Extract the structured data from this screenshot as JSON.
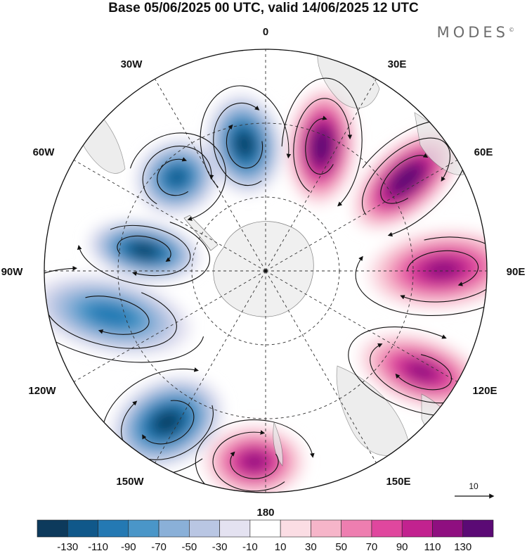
{
  "title": "Base 05/06/2025 00 UTC, valid 14/06/2025 12 UTC",
  "brand": "MODES",
  "brand_mark": "©",
  "longitude_labels": {
    "lon_0": "0",
    "lon_30e": "30E",
    "lon_60e": "60E",
    "lon_90e": "90E",
    "lon_120e": "120E",
    "lon_150e": "150E",
    "lon_180": "180",
    "lon_150w": "150W",
    "lon_120w": "120W",
    "lon_90w": "90W",
    "lon_60w": "60W",
    "lon_30w": "30W"
  },
  "reference_vector": {
    "value": "10"
  },
  "colorbar": {
    "ticks": [
      "-130",
      "-110",
      "-90",
      "-70",
      "-50",
      "-30",
      "-10",
      "10",
      "30",
      "50",
      "70",
      "90",
      "110",
      "130"
    ],
    "colors": [
      "#0d3a5c",
      "#10588a",
      "#2479b3",
      "#4a96c8",
      "#8ab0d8",
      "#b9c6e3",
      "#e4e2f1",
      "#ffffff",
      "#fbdde4",
      "#f6b5c9",
      "#ee7eb0",
      "#e0479e",
      "#c2228f",
      "#8f0f80",
      "#5b0a75"
    ]
  },
  "anomaly_centers": [
    {
      "sign": "negative",
      "level": -110
    },
    {
      "sign": "positive",
      "level": 130
    },
    {
      "sign": "negative",
      "level": -90
    },
    {
      "sign": "positive",
      "level": 130
    },
    {
      "sign": "negative",
      "level": -110
    },
    {
      "sign": "positive",
      "level": 90
    },
    {
      "sign": "negative",
      "level": -70
    },
    {
      "sign": "positive",
      "level": 90
    },
    {
      "sign": "negative",
      "level": -110
    },
    {
      "sign": "positive",
      "level": 90
    }
  ]
}
